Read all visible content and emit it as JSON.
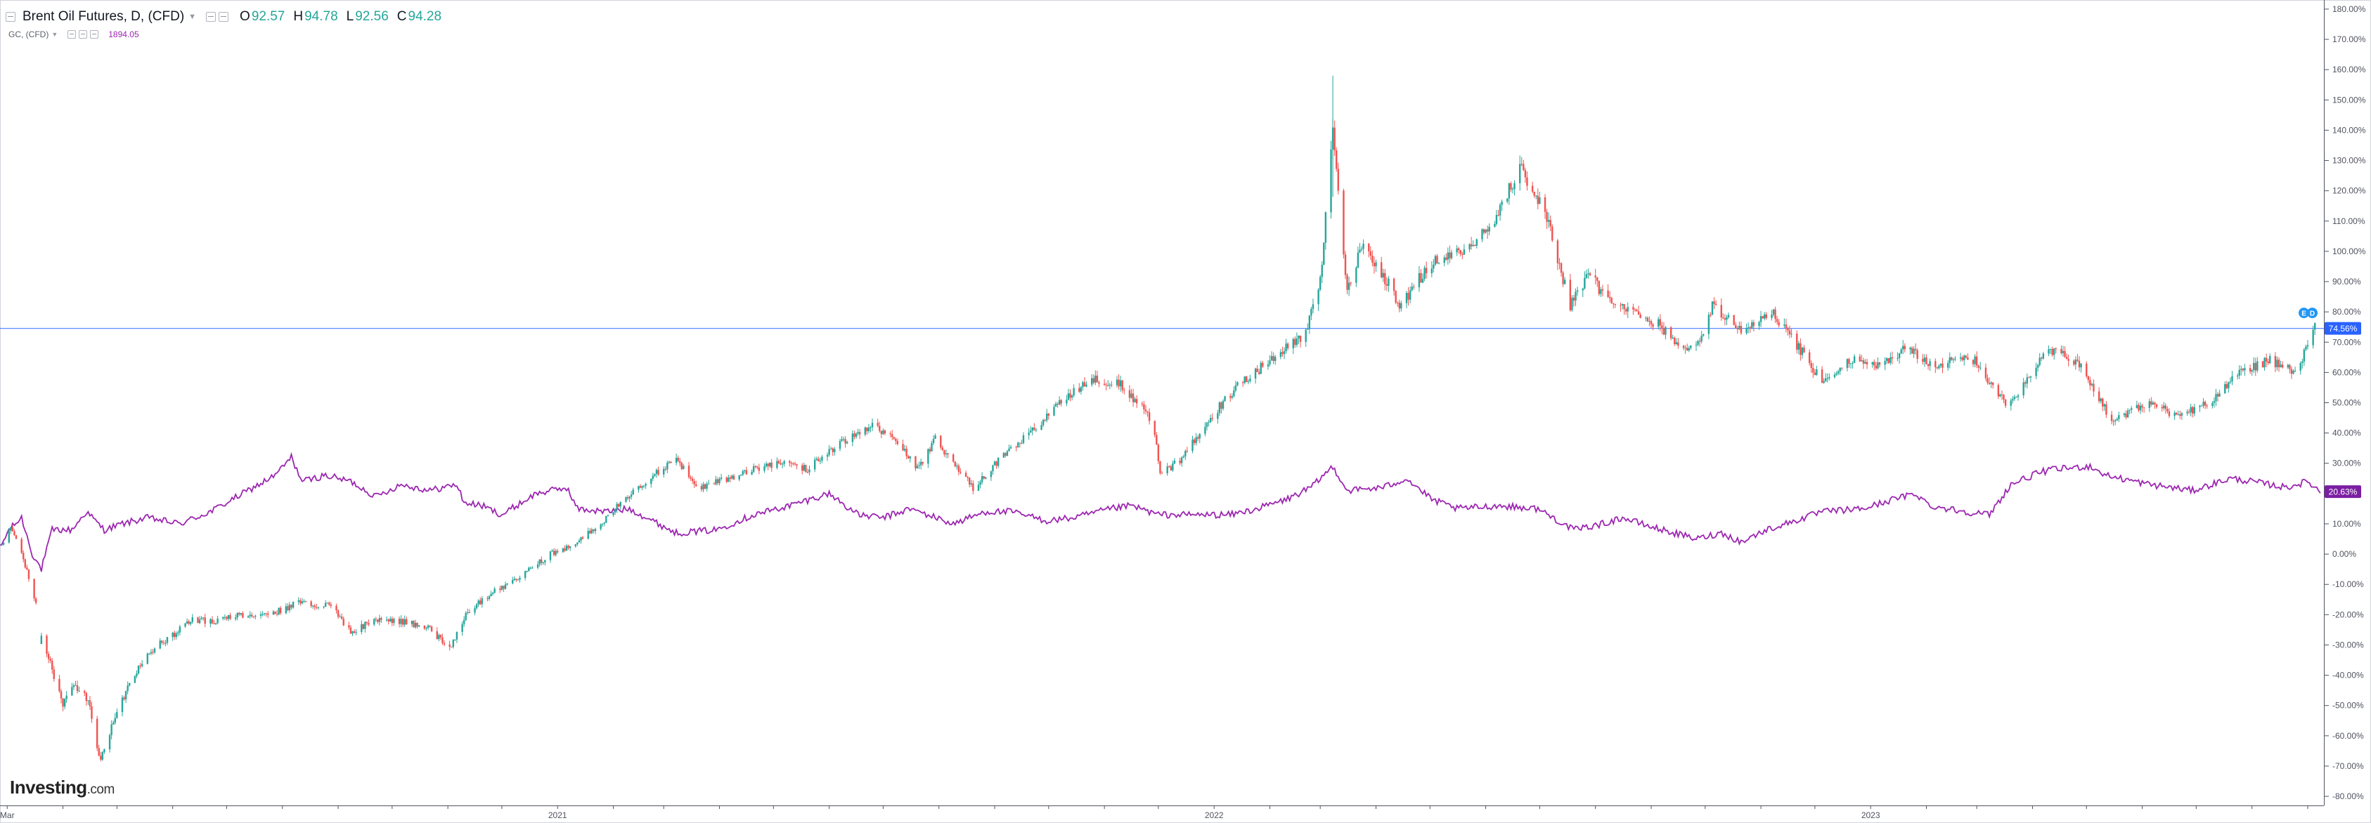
{
  "header": {
    "title": "Brent Oil Futures, D, (CFD)",
    "open_label": "O",
    "open": "92.57",
    "high_label": "H",
    "high": "94.78",
    "low_label": "L",
    "low": "92.56",
    "close_label": "C",
    "close": "94.28",
    "overlay_name": "GC, (CFD)",
    "overlay_value": "1894.05"
  },
  "logo": {
    "brand": "Investing",
    "domain": ".com"
  },
  "chart_data": {
    "type": "line",
    "title": "Brent Oil Futures, D, (CFD)",
    "x_ticks": [
      {
        "label": "Mar",
        "x": "2020-03-01"
      },
      {
        "label": "2021",
        "x": "2021-01-01"
      },
      {
        "label": "2022",
        "x": "2022-01-01"
      },
      {
        "label": "2023",
        "x": "2023-01-01"
      }
    ],
    "xlim": [
      "2020-02-26",
      "2023-09-10"
    ],
    "y_ticks": [
      "180.00%",
      "170.00%",
      "160.00%",
      "150.00%",
      "140.00%",
      "130.00%",
      "120.00%",
      "110.00%",
      "100.00%",
      "90.00%",
      "80.00%",
      "70.00%",
      "60.00%",
      "50.00%",
      "40.00%",
      "30.00%",
      "20.00%",
      "10.00%",
      "0.00%",
      "-10.00%",
      "-20.00%",
      "-30.00%",
      "-40.00%",
      "-50.00%",
      "-60.00%",
      "-70.00%",
      "-80.00%"
    ],
    "ylim": [
      -83,
      183
    ],
    "y_unit": "% change",
    "grid": false,
    "series": [
      {
        "name": "Brent Oil Futures, D, (CFD)",
        "style": "candlestick",
        "color_up": "#26a69a",
        "color_down": "#ef5350",
        "points": [
          [
            "2020-02-27",
            3
          ],
          [
            "2020-03-03",
            9
          ],
          [
            "2020-03-08",
            2
          ],
          [
            "2020-03-13",
            -8
          ],
          [
            "2020-03-17",
            -16
          ],
          [
            "2020-03-20",
            -28
          ],
          [
            "2020-03-26",
            -38
          ],
          [
            "2020-04-01",
            -50
          ],
          [
            "2020-04-08",
            -43
          ],
          [
            "2020-04-15",
            -49
          ],
          [
            "2020-04-22",
            -68
          ],
          [
            "2020-04-29",
            -56
          ],
          [
            "2020-05-06",
            -45
          ],
          [
            "2020-05-13",
            -38
          ],
          [
            "2020-05-22",
            -31
          ],
          [
            "2020-06-01",
            -27
          ],
          [
            "2020-06-10",
            -22
          ],
          [
            "2020-06-25",
            -22
          ],
          [
            "2020-07-10",
            -20
          ],
          [
            "2020-07-25",
            -20
          ],
          [
            "2020-08-10",
            -16
          ],
          [
            "2020-08-28",
            -17
          ],
          [
            "2020-09-08",
            -26
          ],
          [
            "2020-09-20",
            -22
          ],
          [
            "2020-10-05",
            -22
          ],
          [
            "2020-10-20",
            -24
          ],
          [
            "2020-11-02",
            -31
          ],
          [
            "2020-11-12",
            -19
          ],
          [
            "2020-11-25",
            -13
          ],
          [
            "2020-12-10",
            -8
          ],
          [
            "2020-12-28",
            0
          ],
          [
            "2021-01-10",
            3
          ],
          [
            "2021-01-25",
            10
          ],
          [
            "2021-02-10",
            20
          ],
          [
            "2021-02-25",
            27
          ],
          [
            "2021-03-08",
            31
          ],
          [
            "2021-03-20",
            22
          ],
          [
            "2021-04-05",
            25
          ],
          [
            "2021-04-20",
            28
          ],
          [
            "2021-05-05",
            30
          ],
          [
            "2021-05-20",
            28
          ],
          [
            "2021-06-05",
            36
          ],
          [
            "2021-06-25",
            42
          ],
          [
            "2021-07-08",
            38
          ],
          [
            "2021-07-20",
            28
          ],
          [
            "2021-07-30",
            38
          ],
          [
            "2021-08-20",
            22
          ],
          [
            "2021-09-05",
            32
          ],
          [
            "2021-09-25",
            42
          ],
          [
            "2021-10-10",
            52
          ],
          [
            "2021-10-25",
            58
          ],
          [
            "2021-11-10",
            56
          ],
          [
            "2021-11-28",
            44
          ],
          [
            "2021-12-02",
            26
          ],
          [
            "2021-12-15",
            32
          ],
          [
            "2021-12-28",
            44
          ],
          [
            "2022-01-15",
            56
          ],
          [
            "2022-02-01",
            64
          ],
          [
            "2022-02-20",
            72
          ],
          [
            "2022-03-01",
            90
          ],
          [
            "2022-03-08",
            140
          ],
          [
            "2022-03-16",
            86
          ],
          [
            "2022-03-24",
            102
          ],
          [
            "2022-04-05",
            92
          ],
          [
            "2022-04-15",
            82
          ],
          [
            "2022-05-01",
            96
          ],
          [
            "2022-05-20",
            100
          ],
          [
            "2022-06-08",
            112
          ],
          [
            "2022-06-20",
            128
          ],
          [
            "2022-07-05",
            112
          ],
          [
            "2022-07-18",
            82
          ],
          [
            "2022-07-28",
            93
          ],
          [
            "2022-08-10",
            82
          ],
          [
            "2022-08-22",
            80
          ],
          [
            "2022-09-05",
            76
          ],
          [
            "2022-09-15",
            70
          ],
          [
            "2022-09-26",
            68
          ],
          [
            "2022-10-05",
            82
          ],
          [
            "2022-10-20",
            74
          ],
          [
            "2022-11-07",
            80
          ],
          [
            "2022-11-20",
            70
          ],
          [
            "2022-12-06",
            56
          ],
          [
            "2022-12-20",
            64
          ],
          [
            "2023-01-05",
            62
          ],
          [
            "2023-01-20",
            68
          ],
          [
            "2023-02-05",
            62
          ],
          [
            "2023-02-25",
            66
          ],
          [
            "2023-03-17",
            50
          ],
          [
            "2023-03-28",
            56
          ],
          [
            "2023-04-10",
            68
          ],
          [
            "2023-04-28",
            62
          ],
          [
            "2023-05-15",
            44
          ],
          [
            "2023-06-05",
            50
          ],
          [
            "2023-06-20",
            46
          ],
          [
            "2023-07-10",
            50
          ],
          [
            "2023-07-25",
            60
          ],
          [
            "2023-08-10",
            64
          ],
          [
            "2023-08-25",
            60
          ],
          [
            "2023-09-05",
            74.56
          ]
        ]
      },
      {
        "name": "GC, (CFD)",
        "style": "line",
        "color": "#9c27b0",
        "points": [
          [
            "2020-02-26",
            2
          ],
          [
            "2020-03-02",
            8
          ],
          [
            "2020-03-09",
            12
          ],
          [
            "2020-03-15",
            0
          ],
          [
            "2020-03-20",
            -5
          ],
          [
            "2020-03-26",
            8
          ],
          [
            "2020-04-06",
            8
          ],
          [
            "2020-04-14",
            14
          ],
          [
            "2020-04-24",
            8
          ],
          [
            "2020-05-04",
            10
          ],
          [
            "2020-05-18",
            12
          ],
          [
            "2020-06-05",
            10
          ],
          [
            "2020-06-22",
            14
          ],
          [
            "2020-07-10",
            20
          ],
          [
            "2020-07-28",
            26
          ],
          [
            "2020-08-06",
            32
          ],
          [
            "2020-08-12",
            24
          ],
          [
            "2020-08-25",
            26
          ],
          [
            "2020-09-08",
            24
          ],
          [
            "2020-09-22",
            19
          ],
          [
            "2020-10-06",
            23
          ],
          [
            "2020-10-22",
            21
          ],
          [
            "2020-11-06",
            23
          ],
          [
            "2020-11-10",
            17
          ],
          [
            "2020-11-20",
            16
          ],
          [
            "2020-12-01",
            13
          ],
          [
            "2020-12-20",
            20
          ],
          [
            "2021-01-06",
            22
          ],
          [
            "2021-01-12",
            15
          ],
          [
            "2021-01-28",
            14
          ],
          [
            "2021-02-10",
            15
          ],
          [
            "2021-02-26",
            10
          ],
          [
            "2021-03-08",
            7
          ],
          [
            "2021-03-30",
            8
          ],
          [
            "2021-04-20",
            13
          ],
          [
            "2021-05-10",
            16
          ],
          [
            "2021-06-01",
            20
          ],
          [
            "2021-06-17",
            13
          ],
          [
            "2021-07-01",
            12
          ],
          [
            "2021-07-16",
            15
          ],
          [
            "2021-08-09",
            10
          ],
          [
            "2021-08-27",
            14
          ],
          [
            "2021-09-10",
            14
          ],
          [
            "2021-09-30",
            11
          ],
          [
            "2021-10-15",
            12
          ],
          [
            "2021-11-05",
            15
          ],
          [
            "2021-11-16",
            16
          ],
          [
            "2021-12-01",
            13
          ],
          [
            "2021-12-20",
            13
          ],
          [
            "2022-01-10",
            13
          ],
          [
            "2022-01-25",
            15
          ],
          [
            "2022-02-10",
            18
          ],
          [
            "2022-02-24",
            22
          ],
          [
            "2022-03-08",
            29
          ],
          [
            "2022-03-16",
            21
          ],
          [
            "2022-04-05",
            22
          ],
          [
            "2022-04-18",
            25
          ],
          [
            "2022-05-02",
            18
          ],
          [
            "2022-05-16",
            15
          ],
          [
            "2022-06-08",
            16
          ],
          [
            "2022-06-30",
            15
          ],
          [
            "2022-07-20",
            8
          ],
          [
            "2022-08-05",
            10
          ],
          [
            "2022-08-16",
            12
          ],
          [
            "2022-09-01",
            9
          ],
          [
            "2022-09-26",
            5
          ],
          [
            "2022-10-10",
            7
          ],
          [
            "2022-10-21",
            4
          ],
          [
            "2022-11-04",
            8
          ],
          [
            "2022-11-20",
            11
          ],
          [
            "2022-12-05",
            14
          ],
          [
            "2022-12-28",
            15
          ],
          [
            "2023-01-13",
            18
          ],
          [
            "2023-01-26",
            20
          ],
          [
            "2023-02-03",
            16
          ],
          [
            "2023-02-23",
            14
          ],
          [
            "2023-03-08",
            13
          ],
          [
            "2023-03-20",
            23
          ],
          [
            "2023-04-05",
            27
          ],
          [
            "2023-04-13",
            28
          ],
          [
            "2023-05-03",
            29
          ],
          [
            "2023-05-12",
            26
          ],
          [
            "2023-06-05",
            23
          ],
          [
            "2023-06-29",
            21
          ],
          [
            "2023-07-20",
            25
          ],
          [
            "2023-08-01",
            24
          ],
          [
            "2023-08-20",
            22
          ],
          [
            "2023-09-01",
            24
          ],
          [
            "2023-09-08",
            20.63
          ]
        ]
      }
    ],
    "current_value_labels": [
      {
        "series": "Brent Oil Futures, D, (CFD)",
        "text": "74.56%",
        "color": "#2962ff"
      },
      {
        "series": "GC, (CFD)",
        "text": "20.63%",
        "color": "#7b1fa2"
      }
    ],
    "price_line": {
      "value": 74.56,
      "color": "#2962ff"
    },
    "marker_badges": [
      "E",
      "D"
    ],
    "legend": "top-left"
  }
}
